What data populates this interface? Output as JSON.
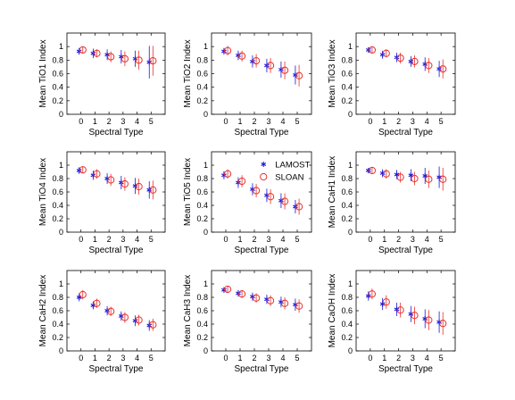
{
  "chart_data": [
    {
      "type": "scatter",
      "ylabel": "Mean TiO1 Index",
      "xlabel": "Spectral Type",
      "xlim": [
        -1,
        6
      ],
      "ylim": [
        0,
        1.2
      ],
      "xticks": [
        "0",
        "1",
        "2",
        "3",
        "4",
        "5"
      ],
      "yticks": [
        "0",
        "0.2",
        "0.4",
        "0.6",
        "0.8",
        "1"
      ],
      "x": [
        0,
        1,
        2,
        3,
        4,
        5
      ],
      "series": [
        {
          "name": "LAMOST",
          "values": [
            0.93,
            0.9,
            0.88,
            0.85,
            0.82,
            0.77
          ],
          "err": [
            0.05,
            0.07,
            0.08,
            0.1,
            0.12,
            0.24
          ]
        },
        {
          "name": "SLOAN",
          "values": [
            0.95,
            0.9,
            0.85,
            0.82,
            0.8,
            0.79
          ],
          "err": [
            0.05,
            0.06,
            0.08,
            0.11,
            0.14,
            0.22
          ]
        }
      ]
    },
    {
      "type": "scatter",
      "ylabel": "Mean TiO2 Index",
      "xlabel": "Spectral Type",
      "xlim": [
        -1,
        6
      ],
      "ylim": [
        0,
        1.2
      ],
      "xticks": [
        "0",
        "1",
        "2",
        "3",
        "4",
        "5"
      ],
      "yticks": [
        "0",
        "0.2",
        "0.4",
        "0.6",
        "0.8",
        "1"
      ],
      "x": [
        0,
        1,
        2,
        3,
        4,
        5
      ],
      "series": [
        {
          "name": "LAMOST",
          "values": [
            0.93,
            0.87,
            0.78,
            0.72,
            0.66,
            0.58
          ],
          "err": [
            0.05,
            0.07,
            0.09,
            0.1,
            0.12,
            0.14
          ]
        },
        {
          "name": "SLOAN",
          "values": [
            0.94,
            0.86,
            0.79,
            0.72,
            0.65,
            0.57
          ],
          "err": [
            0.07,
            0.08,
            0.1,
            0.11,
            0.13,
            0.16
          ]
        }
      ]
    },
    {
      "type": "scatter",
      "ylabel": "Mean TiO3 Index",
      "xlabel": "Spectral Type",
      "xlim": [
        -1,
        6
      ],
      "ylim": [
        0,
        1.2
      ],
      "xticks": [
        "0",
        "1",
        "2",
        "3",
        "4",
        "5"
      ],
      "yticks": [
        "0",
        "0.2",
        "0.4",
        "0.6",
        "0.8",
        "1"
      ],
      "x": [
        0,
        1,
        2,
        3,
        4,
        5
      ],
      "series": [
        {
          "name": "LAMOST",
          "values": [
            0.95,
            0.88,
            0.84,
            0.78,
            0.74,
            0.67
          ],
          "err": [
            0.04,
            0.06,
            0.07,
            0.08,
            0.1,
            0.12
          ]
        },
        {
          "name": "SLOAN",
          "values": [
            0.95,
            0.9,
            0.83,
            0.78,
            0.72,
            0.67
          ],
          "err": [
            0.05,
            0.06,
            0.08,
            0.09,
            0.11,
            0.14
          ]
        }
      ]
    },
    {
      "type": "scatter",
      "ylabel": "Mean TiO4 Index",
      "xlabel": "Spectral Type",
      "xlim": [
        -1,
        6
      ],
      "ylim": [
        0,
        1.2
      ],
      "xticks": [
        "0",
        "1",
        "2",
        "3",
        "4",
        "5"
      ],
      "yticks": [
        "0",
        "0.2",
        "0.4",
        "0.6",
        "0.8",
        "1"
      ],
      "x": [
        0,
        1,
        2,
        3,
        4,
        5
      ],
      "series": [
        {
          "name": "LAMOST",
          "values": [
            0.92,
            0.85,
            0.8,
            0.74,
            0.69,
            0.63
          ],
          "err": [
            0.05,
            0.07,
            0.08,
            0.1,
            0.12,
            0.13
          ]
        },
        {
          "name": "SLOAN",
          "values": [
            0.93,
            0.87,
            0.78,
            0.72,
            0.68,
            0.63
          ],
          "err": [
            0.05,
            0.07,
            0.09,
            0.1,
            0.12,
            0.14
          ]
        }
      ]
    },
    {
      "type": "scatter",
      "ylabel": "Mean TiO5 Index",
      "xlabel": "Spectral Type",
      "xlim": [
        -1,
        6
      ],
      "ylim": [
        0,
        1.2
      ],
      "xticks": [
        "0",
        "1",
        "2",
        "3",
        "4",
        "5"
      ],
      "yticks": [
        "0",
        "0.2",
        "0.4",
        "0.6",
        "0.8",
        "1"
      ],
      "x": [
        0,
        1,
        2,
        3,
        4,
        5
      ],
      "legend": {
        "placement": "top-right",
        "entries": [
          "LAMOST",
          "SLOAN"
        ]
      },
      "series": [
        {
          "name": "LAMOST",
          "values": [
            0.85,
            0.74,
            0.64,
            0.55,
            0.47,
            0.38
          ],
          "err": [
            0.06,
            0.08,
            0.09,
            0.1,
            0.11,
            0.1
          ]
        },
        {
          "name": "SLOAN",
          "values": [
            0.87,
            0.76,
            0.62,
            0.53,
            0.46,
            0.38
          ],
          "err": [
            0.07,
            0.09,
            0.1,
            0.11,
            0.12,
            0.12
          ]
        }
      ]
    },
    {
      "type": "scatter",
      "ylabel": "Mean CaH1 Index",
      "xlabel": "Spectral Type",
      "xlim": [
        -1,
        6
      ],
      "ylim": [
        0,
        1.2
      ],
      "xticks": [
        "0",
        "1",
        "2",
        "3",
        "4",
        "5"
      ],
      "yticks": [
        "0",
        "0.2",
        "0.4",
        "0.6",
        "0.8",
        "1"
      ],
      "x": [
        0,
        1,
        2,
        3,
        4,
        5
      ],
      "series": [
        {
          "name": "LAMOST",
          "values": [
            0.92,
            0.88,
            0.86,
            0.85,
            0.84,
            0.82
          ],
          "err": [
            0.04,
            0.06,
            0.07,
            0.09,
            0.12,
            0.16
          ]
        },
        {
          "name": "SLOAN",
          "values": [
            0.92,
            0.87,
            0.82,
            0.8,
            0.79,
            0.79
          ],
          "err": [
            0.05,
            0.07,
            0.08,
            0.1,
            0.13,
            0.17
          ]
        }
      ]
    },
    {
      "type": "scatter",
      "ylabel": "Mean CaH2 Index",
      "xlabel": "Spectral Type",
      "xlim": [
        -1,
        6
      ],
      "ylim": [
        0,
        1.2
      ],
      "xticks": [
        "0",
        "1",
        "2",
        "3",
        "4",
        "5"
      ],
      "yticks": [
        "0",
        "0.2",
        "0.4",
        "0.6",
        "0.8",
        "1"
      ],
      "x": [
        0,
        1,
        2,
        3,
        4,
        5
      ],
      "series": [
        {
          "name": "LAMOST",
          "values": [
            0.8,
            0.68,
            0.6,
            0.52,
            0.45,
            0.38
          ],
          "err": [
            0.06,
            0.06,
            0.07,
            0.07,
            0.08,
            0.08
          ]
        },
        {
          "name": "SLOAN",
          "values": [
            0.84,
            0.71,
            0.59,
            0.5,
            0.46,
            0.39
          ],
          "err": [
            0.07,
            0.07,
            0.07,
            0.08,
            0.08,
            0.09
          ]
        }
      ]
    },
    {
      "type": "scatter",
      "ylabel": "Mean CaH3 Index",
      "xlabel": "Spectral Type",
      "xlim": [
        -1,
        6
      ],
      "ylim": [
        0,
        1.2
      ],
      "xticks": [
        "0",
        "1",
        "2",
        "3",
        "4",
        "5"
      ],
      "yticks": [
        "0",
        "0.2",
        "0.4",
        "0.6",
        "0.8",
        "1"
      ],
      "x": [
        0,
        1,
        2,
        3,
        4,
        5
      ],
      "series": [
        {
          "name": "LAMOST",
          "values": [
            0.91,
            0.86,
            0.81,
            0.77,
            0.73,
            0.69
          ],
          "err": [
            0.04,
            0.05,
            0.06,
            0.07,
            0.08,
            0.09
          ]
        },
        {
          "name": "SLOAN",
          "values": [
            0.92,
            0.85,
            0.79,
            0.75,
            0.71,
            0.67
          ],
          "err": [
            0.05,
            0.06,
            0.07,
            0.08,
            0.09,
            0.1
          ]
        }
      ]
    },
    {
      "type": "scatter",
      "ylabel": "Mean CaOH Index",
      "xlabel": "Spectral Type",
      "xlim": [
        -1,
        6
      ],
      "ylim": [
        0,
        1.2
      ],
      "xticks": [
        "0",
        "1",
        "2",
        "3",
        "4",
        "5"
      ],
      "yticks": [
        "0",
        "0.2",
        "0.4",
        "0.6",
        "0.8",
        "1"
      ],
      "x": [
        0,
        1,
        2,
        3,
        4,
        5
      ],
      "series": [
        {
          "name": "LAMOST",
          "values": [
            0.82,
            0.7,
            0.62,
            0.55,
            0.48,
            0.43
          ],
          "err": [
            0.07,
            0.09,
            0.1,
            0.12,
            0.14,
            0.16
          ]
        },
        {
          "name": "SLOAN",
          "values": [
            0.85,
            0.73,
            0.61,
            0.53,
            0.46,
            0.41
          ],
          "err": [
            0.08,
            0.1,
            0.11,
            0.13,
            0.15,
            0.17
          ]
        }
      ]
    }
  ],
  "colors": {
    "LAMOST": "#1a1adb",
    "SLOAN": "#e8302a",
    "axis": "#000000"
  },
  "markers": {
    "LAMOST": "asterisk",
    "SLOAN": "circle"
  }
}
